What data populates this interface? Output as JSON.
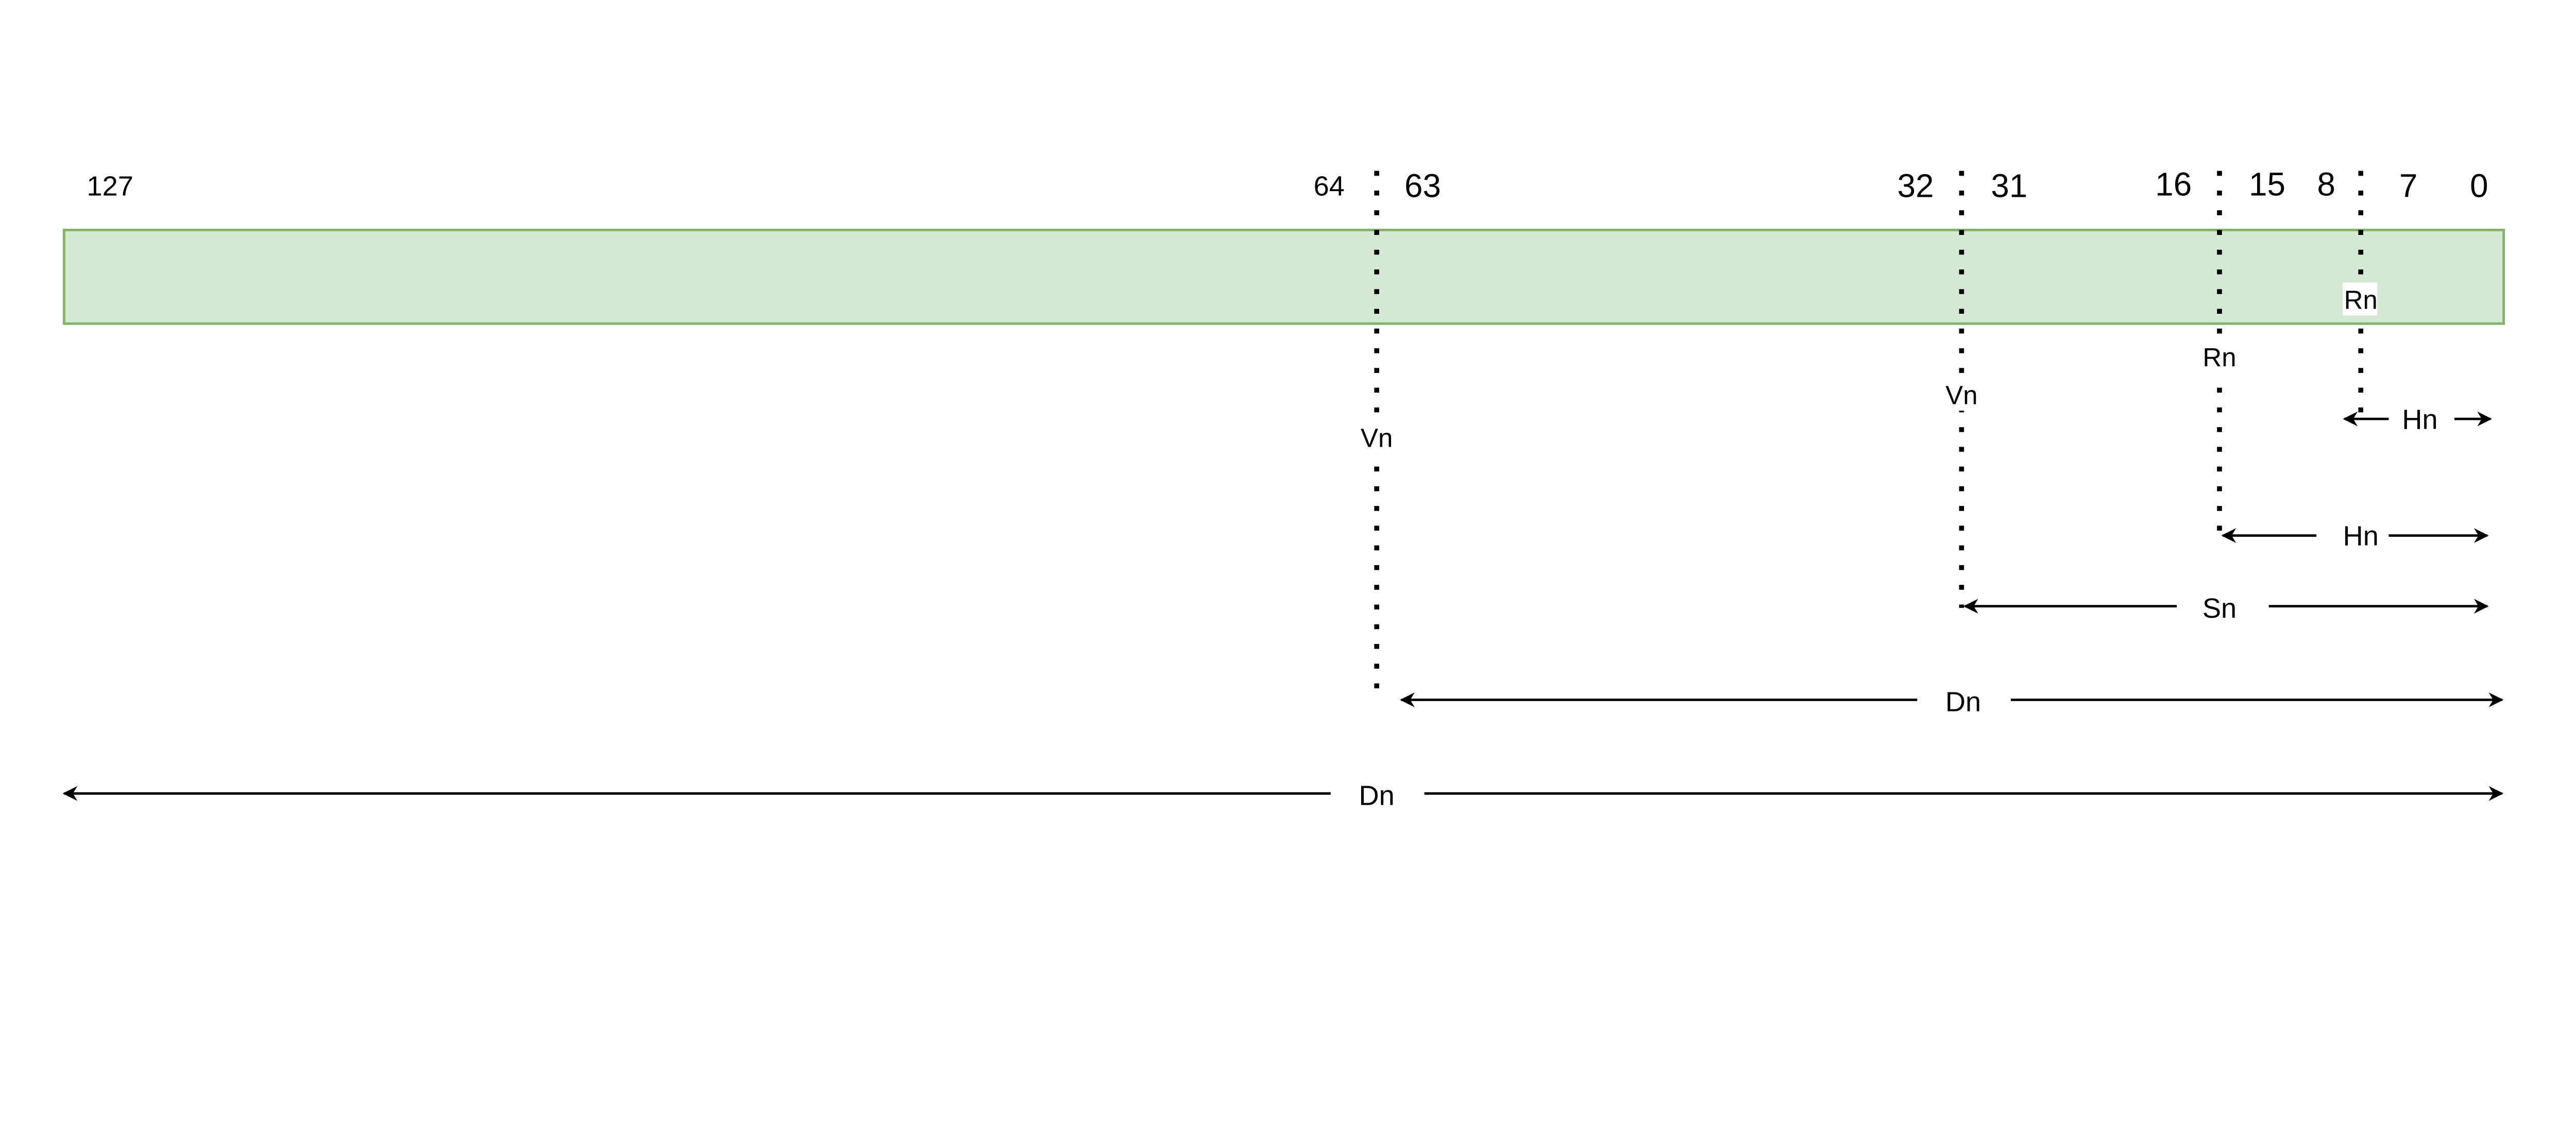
{
  "register": {
    "fill_color": "#d5e8d4",
    "stroke_color": "#82b366"
  },
  "bit_labels": {
    "b127": "127",
    "b64": "64",
    "b63": "63",
    "b32": "32",
    "b31": "31",
    "b16": "16",
    "b15": "15",
    "b8": "8",
    "b7": "7",
    "b0": "0"
  },
  "dividers": {
    "vn_64": "Vn",
    "vn_32": "Vn",
    "rn_16": "Rn",
    "rn_8": "Rn"
  },
  "spans": {
    "hn_8": "Hn",
    "hn_16": "Hn",
    "sn_32": "Sn",
    "dn_64": "Dn",
    "dn_128": "Dn"
  }
}
